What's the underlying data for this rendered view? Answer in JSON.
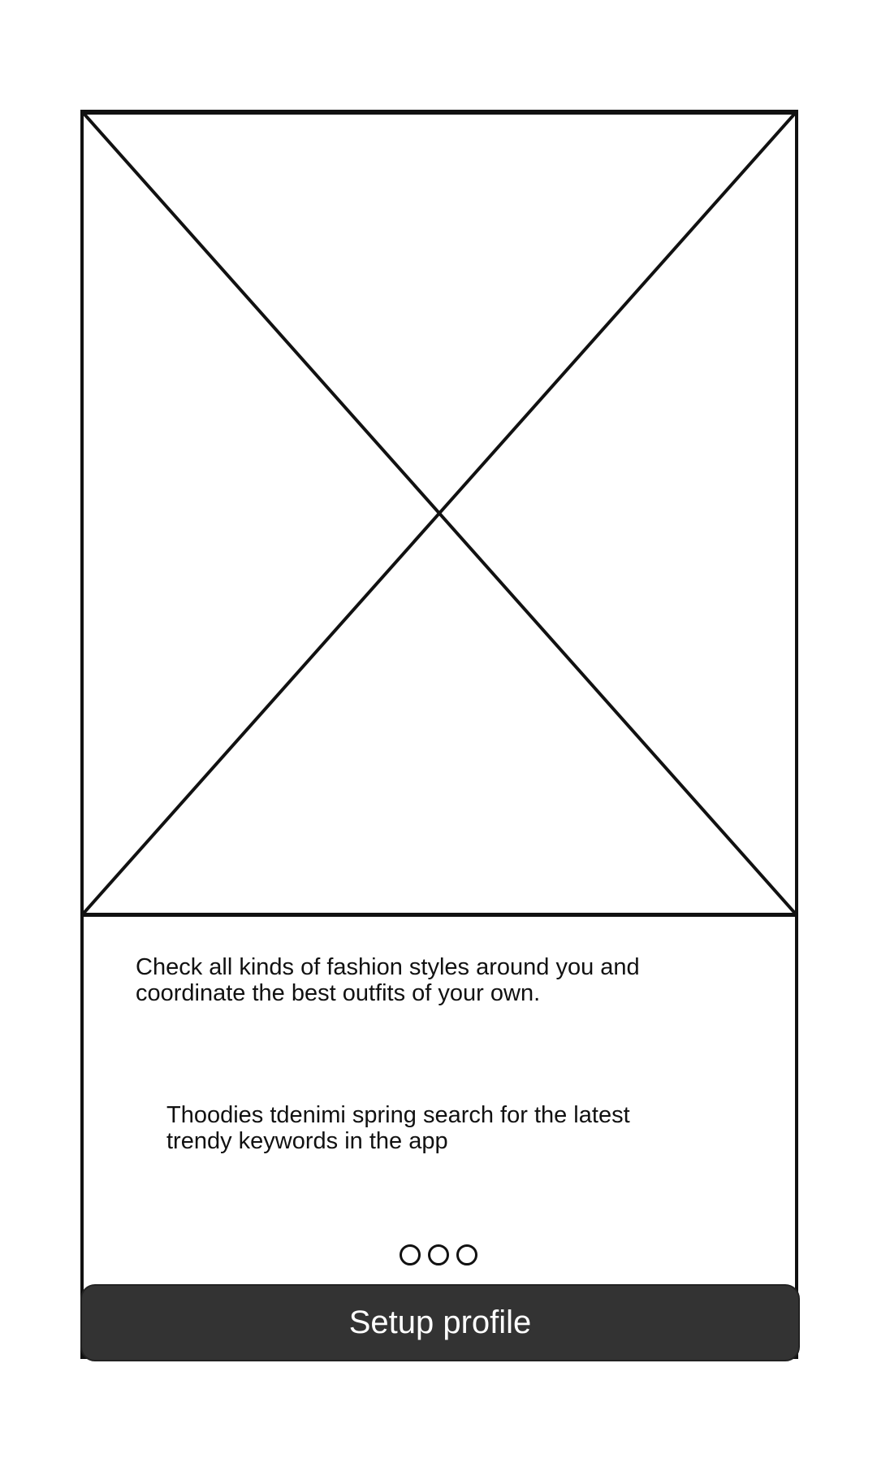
{
  "onboarding": {
    "image_icon": "image-placeholder-icon",
    "description_lines": [
      "Check all kinds of fashion styles around you and",
      "coordinate the best outfits of your own."
    ],
    "keywords_lines": [
      "Thoodies tdenimi spring search for the latest",
      "trendy keywords in the app"
    ],
    "pager": {
      "total": 3
    },
    "cta_label": "Setup profile"
  },
  "colors": {
    "ink": "#111111",
    "button_background": "#333333",
    "button_text": "#ffffff"
  }
}
